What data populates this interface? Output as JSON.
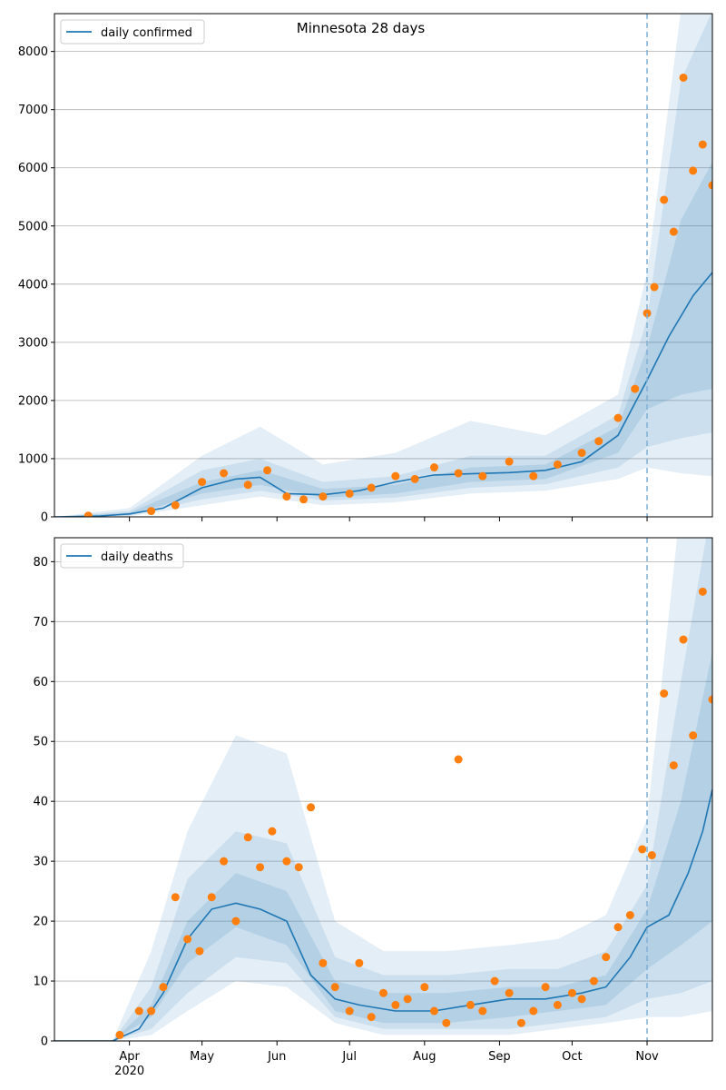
{
  "chart_data": [
    {
      "type": "line",
      "title": "Minnesota 28 days",
      "legend": {
        "label": "daily confirmed",
        "placement": "top-left"
      },
      "ylim": [
        0,
        8650
      ],
      "yticks": [
        0,
        1000,
        2000,
        3000,
        4000,
        5000,
        6000,
        7000,
        8000
      ],
      "xrange": [
        "2020-03-01",
        "2020-11-28"
      ],
      "forecast_start": "2020-11-01",
      "grid": "horizontal",
      "colors": {
        "line": "#1f77b4",
        "points": "#ff7f0e",
        "band": "#1f77b4"
      },
      "series": [
        {
          "name": "daily confirmed",
          "x": [
            "2020-03-01",
            "2020-03-10",
            "2020-03-20",
            "2020-04-01",
            "2020-04-15",
            "2020-05-01",
            "2020-05-15",
            "2020-05-25",
            "2020-06-05",
            "2020-06-20",
            "2020-07-05",
            "2020-07-20",
            "2020-08-05",
            "2020-08-20",
            "2020-09-05",
            "2020-09-20",
            "2020-10-05",
            "2020-10-20",
            "2020-11-01",
            "2020-11-10",
            "2020-11-20",
            "2020-11-28"
          ],
          "values": [
            0,
            5,
            15,
            50,
            150,
            500,
            650,
            680,
            400,
            380,
            450,
            600,
            720,
            740,
            760,
            800,
            950,
            1400,
            2350,
            3100,
            3800,
            4200
          ]
        }
      ],
      "observed_points": {
        "x": [
          "2020-03-15",
          "2020-04-10",
          "2020-04-20",
          "2020-05-01",
          "2020-05-10",
          "2020-05-20",
          "2020-05-28",
          "2020-06-05",
          "2020-06-12",
          "2020-06-20",
          "2020-07-01",
          "2020-07-10",
          "2020-07-20",
          "2020-07-28",
          "2020-08-05",
          "2020-08-15",
          "2020-08-25",
          "2020-09-05",
          "2020-09-15",
          "2020-09-25",
          "2020-10-05",
          "2020-10-12",
          "2020-10-20",
          "2020-10-27",
          "2020-11-01",
          "2020-11-04",
          "2020-11-08",
          "2020-11-12",
          "2020-11-16",
          "2020-11-20",
          "2020-11-24",
          "2020-11-28"
        ],
        "values": [
          20,
          100,
          200,
          600,
          750,
          550,
          800,
          350,
          300,
          350,
          400,
          500,
          700,
          650,
          850,
          750,
          700,
          950,
          700,
          900,
          1100,
          1300,
          1700,
          2200,
          3500,
          3950,
          5450,
          4900,
          7550,
          5950,
          6400,
          5700
        ]
      },
      "bands": {
        "x": [
          "2020-03-01",
          "2020-04-01",
          "2020-05-01",
          "2020-05-25",
          "2020-06-20",
          "2020-07-20",
          "2020-08-20",
          "2020-09-20",
          "2020-10-20",
          "2020-11-01",
          "2020-11-15",
          "2020-11-28"
        ],
        "outer_low": [
          0,
          10,
          200,
          350,
          200,
          250,
          400,
          450,
          650,
          850,
          750,
          700
        ],
        "outer_high": [
          0,
          150,
          1050,
          1550,
          900,
          1100,
          1650,
          1400,
          2100,
          4200,
          8700,
          8700
        ],
        "mid_low": [
          0,
          20,
          300,
          450,
          280,
          330,
          500,
          560,
          850,
          1200,
          1350,
          1450
        ],
        "mid_high": [
          0,
          100,
          800,
          1000,
          600,
          700,
          1050,
          1050,
          1750,
          3400,
          7500,
          8700
        ],
        "inner_low": [
          0,
          30,
          400,
          550,
          330,
          400,
          600,
          650,
          1100,
          1850,
          2100,
          2200
        ],
        "inner_high": [
          0,
          70,
          600,
          800,
          480,
          550,
          850,
          900,
          1550,
          2900,
          5100,
          6100
        ]
      }
    },
    {
      "type": "line",
      "title": "",
      "legend": {
        "label": "daily deaths",
        "placement": "top-left"
      },
      "ylim": [
        0,
        84
      ],
      "yticks": [
        0,
        10,
        20,
        30,
        40,
        50,
        60,
        70,
        80
      ],
      "xrange": [
        "2020-03-01",
        "2020-11-28"
      ],
      "xticks": [
        {
          "date": "2020-04-01",
          "label": "Apr",
          "sub": "2020"
        },
        {
          "date": "2020-05-01",
          "label": "May"
        },
        {
          "date": "2020-06-01",
          "label": "Jun"
        },
        {
          "date": "2020-07-01",
          "label": "Jul"
        },
        {
          "date": "2020-08-01",
          "label": "Aug"
        },
        {
          "date": "2020-09-01",
          "label": "Sep"
        },
        {
          "date": "2020-10-01",
          "label": "Oct"
        },
        {
          "date": "2020-11-01",
          "label": "Nov"
        }
      ],
      "forecast_start": "2020-11-01",
      "grid": "horizontal",
      "colors": {
        "line": "#1f77b4",
        "points": "#ff7f0e",
        "band": "#1f77b4"
      },
      "series": [
        {
          "name": "daily deaths",
          "x": [
            "2020-03-01",
            "2020-03-25",
            "2020-04-05",
            "2020-04-15",
            "2020-04-25",
            "2020-05-05",
            "2020-05-15",
            "2020-05-25",
            "2020-06-05",
            "2020-06-15",
            "2020-06-25",
            "2020-07-05",
            "2020-07-20",
            "2020-08-05",
            "2020-08-20",
            "2020-09-05",
            "2020-09-20",
            "2020-10-05",
            "2020-10-15",
            "2020-10-25",
            "2020-11-01",
            "2020-11-10",
            "2020-11-18",
            "2020-11-24",
            "2020-11-28"
          ],
          "values": [
            0,
            0,
            2,
            8,
            17,
            22,
            23,
            22,
            20,
            11,
            7,
            6,
            5,
            5,
            6,
            7,
            7,
            8,
            9,
            14,
            19,
            21,
            28,
            35,
            42
          ]
        }
      ],
      "observed_points": {
        "x": [
          "2020-03-28",
          "2020-04-05",
          "2020-04-10",
          "2020-04-15",
          "2020-04-20",
          "2020-04-25",
          "2020-04-30",
          "2020-05-05",
          "2020-05-10",
          "2020-05-15",
          "2020-05-20",
          "2020-05-25",
          "2020-05-30",
          "2020-06-05",
          "2020-06-10",
          "2020-06-15",
          "2020-06-20",
          "2020-06-25",
          "2020-07-01",
          "2020-07-05",
          "2020-07-10",
          "2020-07-15",
          "2020-07-20",
          "2020-07-25",
          "2020-08-01",
          "2020-08-05",
          "2020-08-10",
          "2020-08-15",
          "2020-08-20",
          "2020-08-25",
          "2020-08-30",
          "2020-09-05",
          "2020-09-10",
          "2020-09-15",
          "2020-09-20",
          "2020-09-25",
          "2020-10-01",
          "2020-10-05",
          "2020-10-10",
          "2020-10-15",
          "2020-10-20",
          "2020-10-25",
          "2020-10-30",
          "2020-11-03",
          "2020-11-08",
          "2020-11-12",
          "2020-11-16",
          "2020-11-20",
          "2020-11-24",
          "2020-11-28"
        ],
        "values": [
          1,
          5,
          5,
          9,
          24,
          17,
          15,
          24,
          30,
          20,
          34,
          29,
          35,
          30,
          29,
          39,
          13,
          9,
          5,
          13,
          4,
          8,
          6,
          7,
          9,
          5,
          3,
          47,
          6,
          5,
          10,
          8,
          3,
          5,
          9,
          6,
          8,
          7,
          10,
          14,
          19,
          21,
          32,
          31,
          58,
          46,
          67,
          51,
          75,
          57
        ]
      },
      "bands": {
        "x": [
          "2020-03-01",
          "2020-03-25",
          "2020-04-10",
          "2020-04-25",
          "2020-05-15",
          "2020-06-05",
          "2020-06-25",
          "2020-07-15",
          "2020-08-10",
          "2020-09-05",
          "2020-09-25",
          "2020-10-15",
          "2020-11-01",
          "2020-11-15",
          "2020-11-28"
        ],
        "outer_low": [
          0,
          0,
          1,
          5,
          10,
          9,
          3,
          1,
          1,
          1,
          2,
          3,
          4,
          4,
          5
        ],
        "outer_high": [
          0,
          0,
          15,
          35,
          51,
          48,
          20,
          15,
          15,
          16,
          17,
          21,
          37,
          90,
          90
        ],
        "mid_low": [
          0,
          0,
          2,
          8,
          14,
          13,
          4,
          2,
          2,
          2,
          3,
          4,
          7,
          8,
          10
        ],
        "mid_high": [
          0,
          0,
          9,
          27,
          35,
          33,
          14,
          11,
          11,
          12,
          12,
          15,
          26,
          60,
          90
        ],
        "inner_low": [
          0,
          0,
          4,
          13,
          19,
          16,
          5,
          3,
          3,
          4,
          5,
          6,
          12,
          16,
          20
        ],
        "inner_high": [
          0,
          0,
          6,
          20,
          28,
          25,
          10,
          8,
          8,
          9,
          9,
          11,
          22,
          40,
          65
        ]
      }
    }
  ]
}
